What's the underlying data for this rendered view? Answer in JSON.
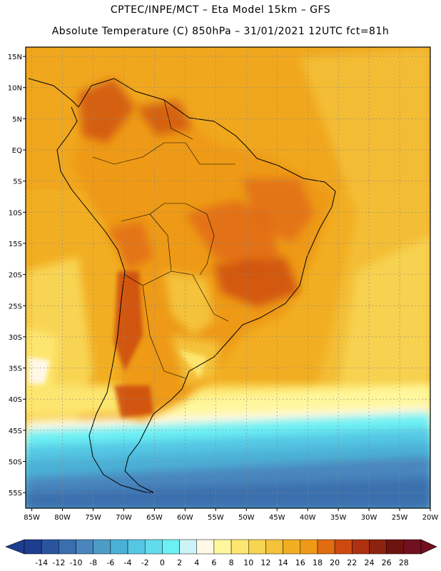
{
  "header": {
    "line1": "CPTEC/INPE/MCT –  Eta Model 15km – GFS",
    "line2": "Absolute Temperature (C) 850hPa – 31/01/2021 12UTC fct=81h"
  },
  "axes": {
    "lat_labels": [
      "15N",
      "10N",
      "5N",
      "EQ",
      "5S",
      "10S",
      "15S",
      "20S",
      "25S",
      "30S",
      "35S",
      "40S",
      "45S",
      "50S",
      "55S"
    ],
    "lat_values": [
      15,
      10,
      5,
      0,
      -5,
      -10,
      -15,
      -20,
      -25,
      -30,
      -35,
      -40,
      -45,
      -50,
      -55
    ],
    "lon_labels": [
      "85W",
      "80W",
      "75W",
      "70W",
      "65W",
      "60W",
      "55W",
      "50W",
      "45W",
      "40W",
      "35W",
      "30W",
      "25W",
      "20W"
    ],
    "lon_values": [
      -85,
      -80,
      -75,
      -70,
      -65,
      -60,
      -55,
      -50,
      -45,
      -40,
      -35,
      -30,
      -25,
      -20
    ],
    "lat_range": [
      -57.5,
      16.5
    ],
    "lon_range": [
      -86,
      -20
    ],
    "grid": true
  },
  "colorbar": {
    "labels": [
      "-14",
      "-12",
      "-10",
      "-8",
      "-6",
      "-4",
      "-2",
      "0",
      "2",
      "4",
      "6",
      "8",
      "10",
      "12",
      "14",
      "16",
      "18",
      "20",
      "22",
      "24",
      "26",
      "28"
    ],
    "colors": [
      "#1f3d8f",
      "#2a559e",
      "#3a6fae",
      "#4a86bd",
      "#4c9cc8",
      "#4bb0d6",
      "#55c7e4",
      "#62dcec",
      "#6cf0f4",
      "#ccf3f7",
      "#fff8e6",
      "#fff79c",
      "#fde66f",
      "#f8d453",
      "#f4c23b",
      "#f2ae22",
      "#ee9a16",
      "#e26c12",
      "#cc4a10",
      "#b0310f",
      "#8c230f",
      "#6e1410",
      "#701020"
    ]
  }
}
